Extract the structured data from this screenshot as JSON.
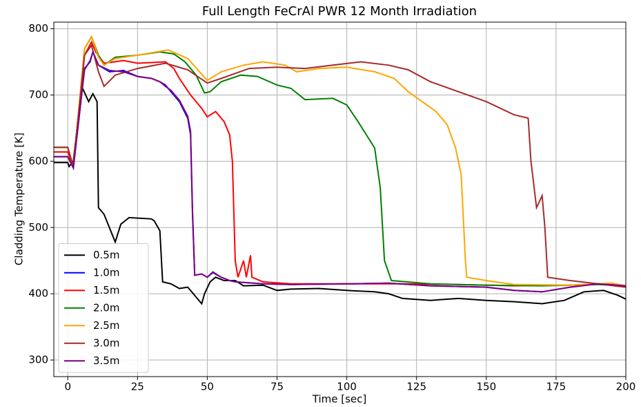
{
  "chart_data": {
    "type": "line",
    "title": "Full Length FeCrAl PWR 12 Month Irradiation",
    "x_label": "Time [sec]",
    "y_label": "Cladding Temperature [K]",
    "xlim": [
      -5,
      200
    ],
    "ylim": [
      275,
      810
    ],
    "xticks": [
      0,
      25,
      50,
      75,
      100,
      125,
      150,
      175,
      200
    ],
    "yticks": [
      300,
      400,
      500,
      600,
      700,
      800
    ],
    "grid": true,
    "legend": "lower left",
    "series": [
      {
        "name": "0.5m",
        "color": "#000000",
        "x": [
          -5,
          0,
          0.5,
          2,
          5,
          7.5,
          9,
          10.5,
          11,
          13,
          17,
          19,
          22,
          30,
          31,
          33,
          34,
          37,
          40,
          43,
          45,
          48,
          49,
          51,
          53,
          56,
          60,
          63,
          70,
          75,
          80,
          90,
          100,
          110,
          115,
          120,
          130,
          140,
          150,
          160,
          170,
          178,
          185,
          192,
          197,
          200
        ],
        "values": [
          598,
          598,
          592,
          600,
          713,
          690,
          702,
          690,
          530,
          520,
          478,
          505,
          515,
          513,
          510,
          495,
          418,
          415,
          408,
          410,
          400,
          385,
          400,
          418,
          425,
          420,
          420,
          412,
          413,
          405,
          407,
          408,
          405,
          403,
          400,
          393,
          390,
          393,
          390,
          388,
          385,
          390,
          403,
          405,
          398,
          392
        ]
      },
      {
        "name": "1.0m",
        "color": "#0000ff",
        "x": [
          -5,
          0,
          2,
          6,
          8,
          9,
          11,
          15,
          20,
          25,
          30,
          33,
          35,
          37,
          40,
          43,
          44,
          44.7,
          45.5,
          48,
          50,
          52,
          55,
          58,
          60,
          70,
          80,
          100,
          115,
          130,
          150,
          160,
          170,
          180,
          190,
          200
        ],
        "values": [
          607,
          607,
          590,
          740,
          750,
          765,
          745,
          735,
          737,
          728,
          725,
          720,
          715,
          705,
          690,
          665,
          640,
          520,
          428,
          430,
          425,
          432,
          425,
          420,
          418,
          415,
          414,
          415,
          416,
          412,
          410,
          405,
          403,
          410,
          415,
          412
        ]
      },
      {
        "name": "1.5m",
        "color": "#ff0000",
        "x": [
          -5,
          0,
          2,
          6,
          8.5,
          10,
          13,
          20,
          25,
          35,
          38,
          40,
          44,
          48,
          50,
          53,
          56,
          58,
          59,
          60,
          61,
          63,
          64,
          65.5,
          66,
          70,
          80,
          100,
          120,
          140,
          160,
          180,
          190,
          200
        ],
        "values": [
          614,
          614,
          592,
          760,
          780,
          765,
          748,
          752,
          748,
          750,
          740,
          725,
          700,
          680,
          667,
          675,
          660,
          640,
          600,
          450,
          425,
          450,
          425,
          458,
          425,
          418,
          415,
          415,
          415,
          414,
          412,
          413,
          415,
          412
        ]
      },
      {
        "name": "2.0m",
        "color": "#008000",
        "x": [
          -5,
          0,
          2,
          6,
          8.5,
          11,
          13,
          17,
          25,
          33,
          38,
          42,
          46,
          49,
          51,
          55,
          62,
          68,
          75,
          80,
          85,
          95,
          100,
          104,
          107,
          110,
          112,
          113.5,
          116,
          130,
          150,
          170,
          190,
          200
        ],
        "values": [
          621,
          621,
          592,
          770,
          788,
          760,
          745,
          757,
          760,
          765,
          762,
          750,
          730,
          703,
          705,
          720,
          730,
          728,
          715,
          710,
          693,
          695,
          685,
          660,
          640,
          620,
          560,
          450,
          420,
          415,
          413,
          412,
          414,
          412
        ]
      },
      {
        "name": "2.5m",
        "color": "#ffa500",
        "x": [
          -5,
          0,
          2,
          6,
          8.5,
          11,
          13,
          17,
          25,
          36,
          43,
          50,
          55,
          63,
          70,
          78,
          82,
          90,
          100,
          110,
          117,
          122,
          127,
          132,
          136,
          139,
          141,
          142.5,
          143,
          150,
          160,
          180,
          195,
          200
        ],
        "values": [
          621,
          621,
          592,
          770,
          788,
          757,
          745,
          755,
          760,
          768,
          755,
          722,
          735,
          745,
          750,
          745,
          735,
          740,
          742,
          735,
          725,
          705,
          690,
          675,
          655,
          620,
          580,
          450,
          425,
          420,
          414,
          413,
          416,
          412
        ]
      },
      {
        "name": "3.0m",
        "color": "#a52a2a",
        "x": [
          -5,
          0,
          2,
          6,
          8.5,
          11,
          13,
          17,
          25,
          35,
          43,
          50,
          55,
          65,
          75,
          85,
          95,
          105,
          115,
          122,
          130,
          140,
          150,
          160,
          165,
          166,
          168,
          170,
          171,
          172,
          180,
          190,
          200
        ],
        "values": [
          621,
          621,
          592,
          760,
          775,
          735,
          713,
          730,
          740,
          748,
          738,
          718,
          725,
          740,
          742,
          740,
          745,
          750,
          745,
          738,
          720,
          705,
          690,
          670,
          665,
          600,
          530,
          548,
          500,
          425,
          420,
          415,
          410
        ]
      },
      {
        "name": "3.5m",
        "color": "#800080",
        "x": [
          -5,
          0,
          2,
          6,
          8,
          9,
          11,
          15,
          20,
          25,
          30,
          33,
          35,
          37,
          40,
          43,
          44,
          44.7,
          45.5,
          48,
          50,
          52,
          55,
          58,
          60,
          70,
          80,
          100,
          115,
          130,
          150,
          160,
          170,
          180,
          190,
          200
        ],
        "values": [
          607,
          607,
          590,
          738,
          752,
          765,
          745,
          737,
          735,
          728,
          725,
          720,
          713,
          707,
          692,
          668,
          645,
          525,
          428,
          430,
          425,
          433,
          425,
          420,
          418,
          415,
          414,
          415,
          416,
          412,
          410,
          405,
          403,
          410,
          415,
          412
        ]
      }
    ]
  }
}
